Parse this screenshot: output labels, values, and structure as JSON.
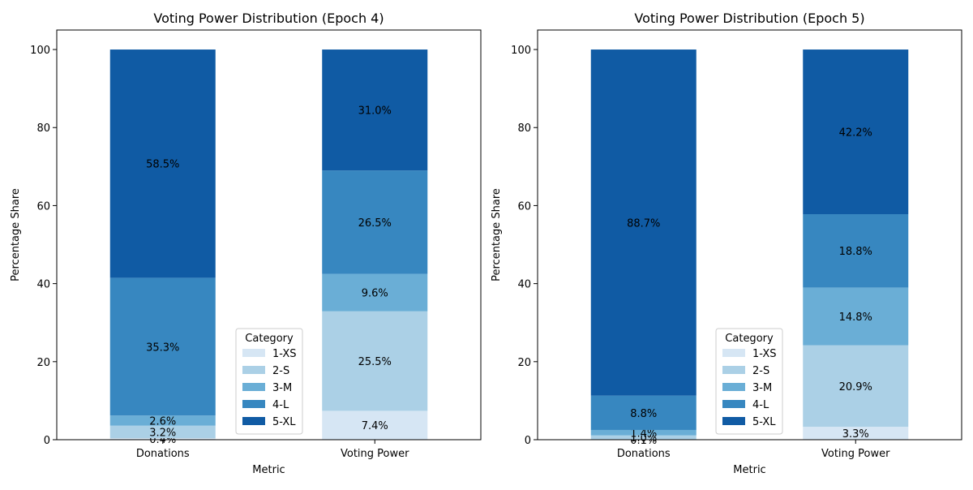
{
  "chart_data": [
    {
      "type": "bar",
      "stacked": true,
      "title": "Voting Power Distribution (Epoch 4)",
      "xlabel": "Metric",
      "ylabel": "Percentage Share",
      "categories": [
        "Donations",
        "Voting Power"
      ],
      "ylim": [
        0,
        105
      ],
      "yticks": [
        0,
        20,
        40,
        60,
        80,
        100
      ],
      "legend": {
        "title": "Category",
        "placement": "lower-center"
      },
      "series": [
        {
          "name": "1-XS",
          "color": "#d6e6f4",
          "values": [
            0.4,
            7.4
          ],
          "labels": [
            "0.4%",
            "7.4%"
          ]
        },
        {
          "name": "2-S",
          "color": "#abd0e6",
          "values": [
            3.2,
            25.5
          ],
          "labels": [
            "3.2%",
            "25.5%"
          ]
        },
        {
          "name": "3-M",
          "color": "#6aaed6",
          "values": [
            2.6,
            9.6
          ],
          "labels": [
            "2.6%",
            "9.6%"
          ]
        },
        {
          "name": "4-L",
          "color": "#3787c0",
          "values": [
            35.3,
            26.5
          ],
          "labels": [
            "35.3%",
            "26.5%"
          ]
        },
        {
          "name": "5-XL",
          "color": "#105ba4",
          "values": [
            58.5,
            31.0
          ],
          "labels": [
            "58.5%",
            "31.0%"
          ]
        }
      ]
    },
    {
      "type": "bar",
      "stacked": true,
      "title": "Voting Power Distribution (Epoch 5)",
      "xlabel": "Metric",
      "ylabel": "Percentage Share",
      "categories": [
        "Donations",
        "Voting Power"
      ],
      "ylim": [
        0,
        105
      ],
      "yticks": [
        0,
        20,
        40,
        60,
        80,
        100
      ],
      "legend": {
        "title": "Category",
        "placement": "lower-center"
      },
      "series": [
        {
          "name": "1-XS",
          "color": "#d6e6f4",
          "values": [
            0.1,
            3.3
          ],
          "labels": [
            "0.1%",
            "3.3%"
          ]
        },
        {
          "name": "2-S",
          "color": "#abd0e6",
          "values": [
            1.0,
            20.9
          ],
          "labels": [
            "1.0%",
            "20.9%"
          ]
        },
        {
          "name": "3-M",
          "color": "#6aaed6",
          "values": [
            1.4,
            14.8
          ],
          "labels": [
            "1.4%",
            "14.8%"
          ]
        },
        {
          "name": "4-L",
          "color": "#3787c0",
          "values": [
            8.8,
            18.8
          ],
          "labels": [
            "8.8%",
            "18.8%"
          ]
        },
        {
          "name": "5-XL",
          "color": "#105ba4",
          "values": [
            88.7,
            42.2
          ],
          "labels": [
            "88.7%",
            "42.2%"
          ]
        }
      ]
    }
  ]
}
